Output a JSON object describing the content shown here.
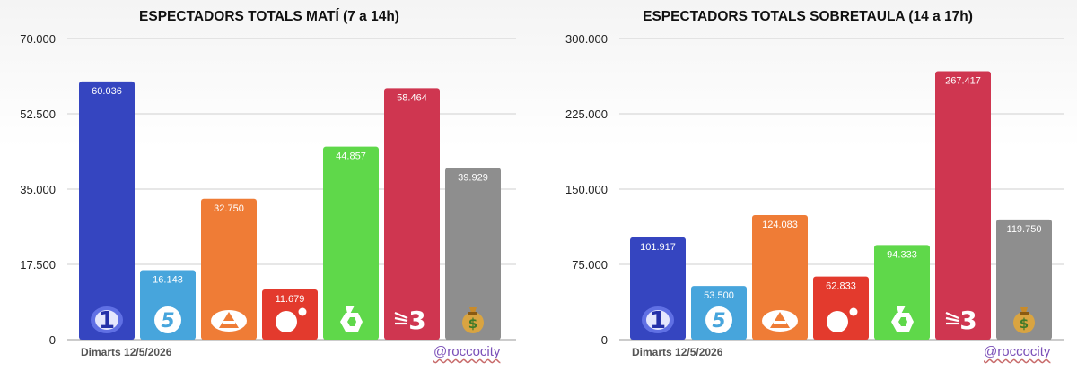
{
  "chart_data": [
    {
      "type": "bar",
      "title": "ESPECTADORS TOTALS MATÍ (7 a 14h)",
      "categories": [
        "1",
        "5",
        "antena3",
        "cuatro",
        "6",
        "3",
        "$"
      ],
      "values": [
        60036,
        16143,
        32750,
        11679,
        44857,
        58464,
        39929
      ],
      "value_labels": [
        "60.036",
        "16.143",
        "32.750",
        "11.679",
        "44.857",
        "58.464",
        "39.929"
      ],
      "ylim": [
        0,
        70000
      ],
      "yticks": [
        0,
        17500,
        35000,
        52500,
        70000
      ],
      "ytick_labels": [
        "0",
        "17.500",
        "35.000",
        "52.500",
        "70.000"
      ],
      "grid": true,
      "xlabel": "",
      "ylabel": ""
    },
    {
      "type": "bar",
      "title": "ESPECTADORS TOTALS SOBRETAULA (14 a 17h)",
      "categories": [
        "1",
        "5",
        "antena3",
        "cuatro",
        "6",
        "3",
        "$"
      ],
      "values": [
        101917,
        53500,
        124083,
        62833,
        94333,
        267417,
        119750
      ],
      "value_labels": [
        "101.917",
        "53.500",
        "124.083",
        "62.833",
        "94.333",
        "267.417",
        "119.750"
      ],
      "ylim": [
        0,
        300000
      ],
      "yticks": [
        0,
        75000,
        150000,
        225000,
        300000
      ],
      "ytick_labels": [
        "0",
        "75.000",
        "150.000",
        "225.000",
        "300.000"
      ],
      "grid": true,
      "xlabel": "",
      "ylabel": ""
    }
  ],
  "channels": [
    {
      "icon": "la1-logo-icon",
      "color": "#3545c0"
    },
    {
      "icon": "telecinco-logo-icon",
      "color": "#47a5dc"
    },
    {
      "icon": "antena3-logo-icon",
      "color": "#ef7c36"
    },
    {
      "icon": "cuatro-logo-icon",
      "color": "#e33a2d"
    },
    {
      "icon": "lasexta-logo-icon",
      "color": "#5fd84a"
    },
    {
      "icon": "tv3-logo-icon",
      "color": "#cf3650"
    },
    {
      "icon": "money-bag-icon",
      "color": "#8e8e8e"
    }
  ],
  "footer": {
    "date": "Dimarts 12/5/2026",
    "handle": "@roccocity"
  }
}
